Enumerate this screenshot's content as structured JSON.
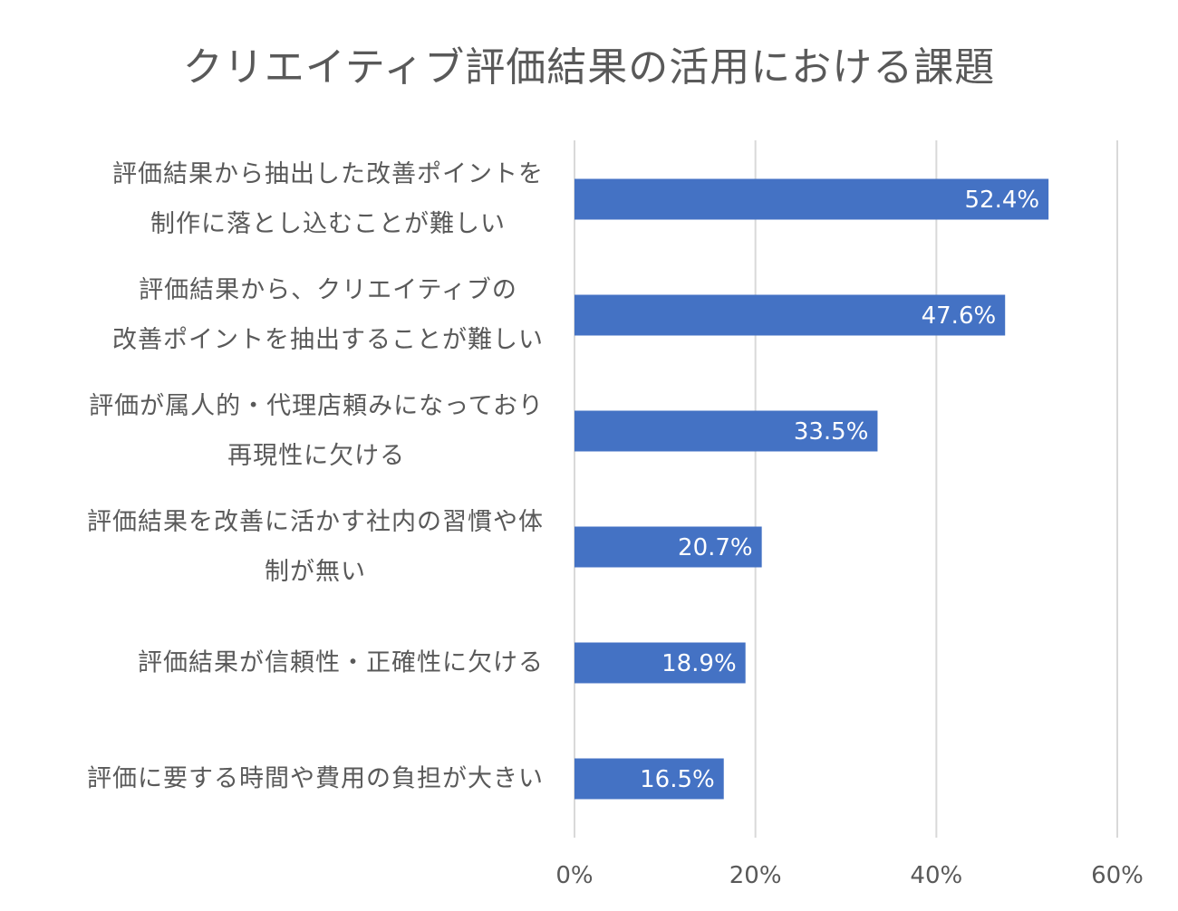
{
  "chart_data": {
    "type": "bar",
    "orientation": "horizontal",
    "title": "クリエイティブ評価結果の活用における課題",
    "categories": [
      [
        "評価結果から抽出した改善ポイントを",
        "制作に落とし込むことが難しい"
      ],
      [
        "評価結果から、クリエイティブの",
        "改善ポイントを抽出することが難しい"
      ],
      [
        "評価が属人的・代理店頼みになっており",
        "再現性に欠ける"
      ],
      [
        "評価結果を改善に活かす社内の習慣や体",
        "制が無い"
      ],
      [
        "評価結果が信頼性・正確性に欠ける"
      ],
      [
        "評価に要する時間や費用の負担が大きい"
      ]
    ],
    "values": [
      52.4,
      47.6,
      33.5,
      20.7,
      18.9,
      16.5
    ],
    "data_labels": [
      "52.4%",
      "47.6%",
      "33.5%",
      "20.7%",
      "18.9%",
      "16.5%"
    ],
    "xlim": [
      0,
      60
    ],
    "x_ticks": [
      0,
      20,
      40,
      60
    ],
    "x_tick_labels": [
      "0%",
      "20%",
      "40%",
      "60%"
    ],
    "grid": true,
    "legend": "none",
    "colors": {
      "bar": "#4472C4",
      "grid": "#D9D9D9",
      "text": "#595959",
      "data_label": "#FFFFFF"
    }
  }
}
